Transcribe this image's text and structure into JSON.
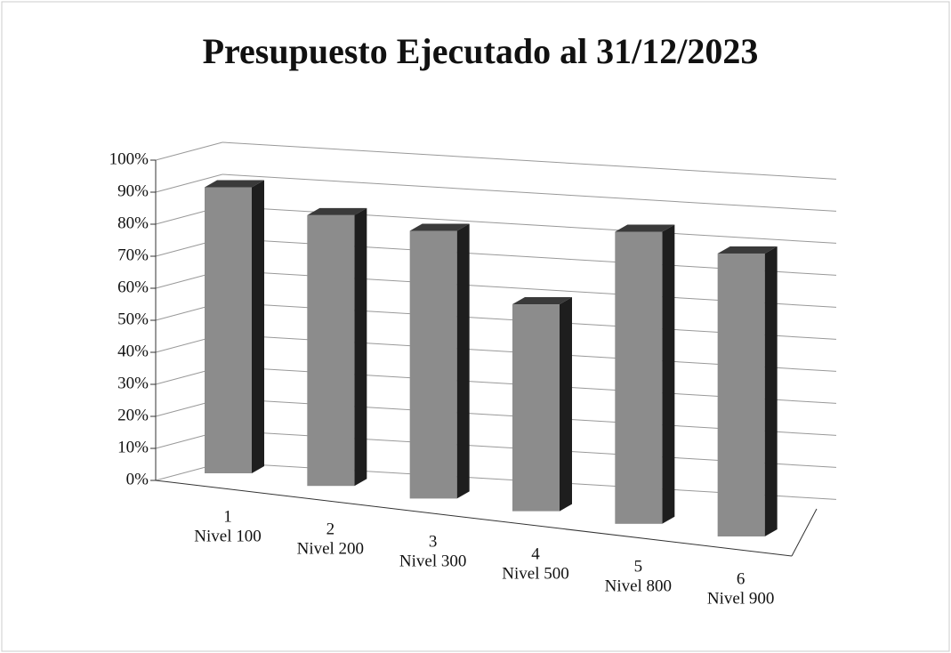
{
  "chart_data": {
    "type": "bar3d",
    "title": "Presupuesto Ejecutado al 31/12/2023",
    "categories": [
      [
        "1",
        "Nivel 100"
      ],
      [
        "2",
        "Nivel 200"
      ],
      [
        "3",
        "Nivel 300"
      ],
      [
        "4",
        "Nivel 500"
      ],
      [
        "5",
        "Nivel 800"
      ],
      [
        "6",
        "Nivel 900"
      ]
    ],
    "values": [
      94,
      89,
      88,
      68,
      96,
      93
    ],
    "color": "#8c8c8c",
    "ylim": [
      0,
      100
    ],
    "yticks": [
      {
        "value": 0,
        "label": "0%"
      },
      {
        "value": 10,
        "label": "10%"
      },
      {
        "value": 20,
        "label": "20%"
      },
      {
        "value": 30,
        "label": "30%"
      },
      {
        "value": 40,
        "label": "40%"
      },
      {
        "value": 50,
        "label": "50%"
      },
      {
        "value": 60,
        "label": "60%"
      },
      {
        "value": 70,
        "label": "70%"
      },
      {
        "value": 80,
        "label": "80%"
      },
      {
        "value": 90,
        "label": "90%"
      },
      {
        "value": 100,
        "label": "100%"
      }
    ],
    "grid": true
  }
}
